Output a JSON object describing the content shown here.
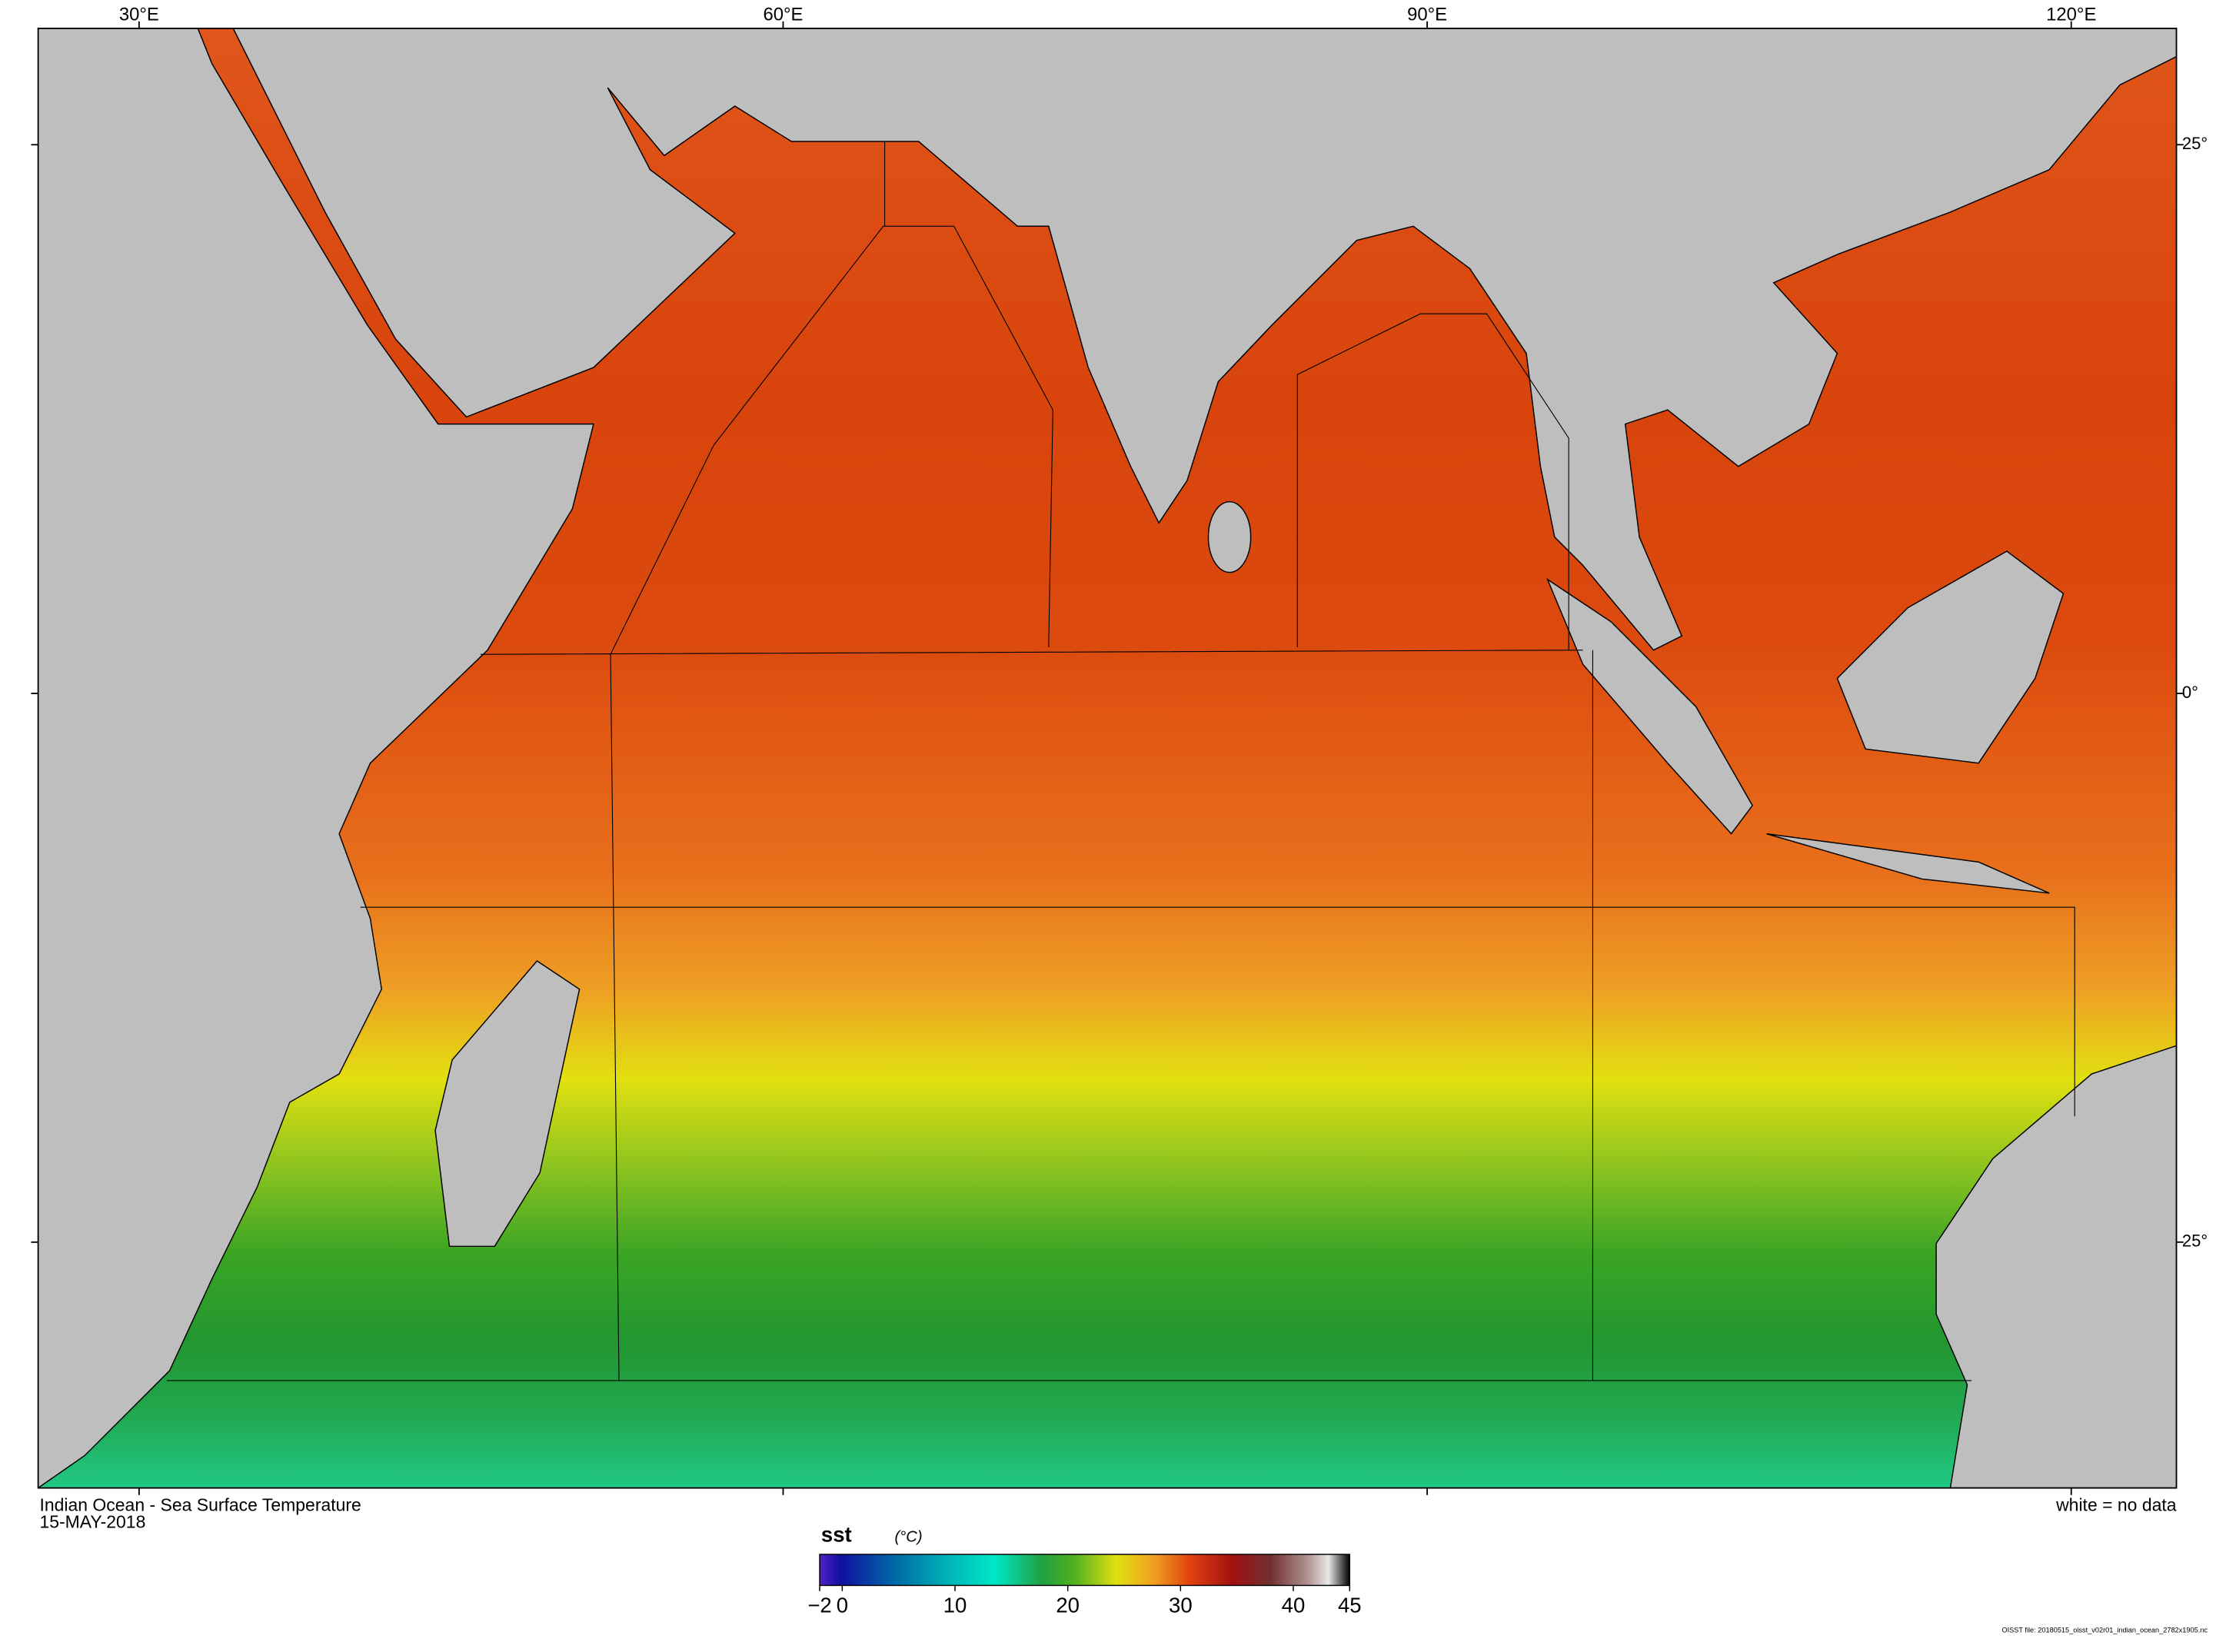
{
  "map": {
    "title": "Indian Ocean - Sea Surface Temperature",
    "date": "15-MAY-2018",
    "note": "white = no data",
    "lon_lim": [
      25.3,
      124.9
    ],
    "lat_lim": [
      -36.2,
      30.3
    ],
    "lon_ticks": [
      {
        "value": 30,
        "label": "30°E"
      },
      {
        "value": 60,
        "label": "60°E"
      },
      {
        "value": 90,
        "label": "90°E"
      },
      {
        "value": 120,
        "label": "120°E"
      }
    ],
    "lat_ticks": [
      {
        "value": 25,
        "label": "25°"
      },
      {
        "value": 0,
        "label": "0°"
      },
      {
        "value": -25,
        "label": "25°"
      }
    ]
  },
  "colorbar": {
    "label": "sst",
    "unit": "(°C)",
    "lim": [
      -2,
      45
    ],
    "ticks": [
      {
        "value": -2,
        "label": "−2"
      },
      0,
      10,
      20,
      30,
      40,
      45
    ]
  },
  "footer": "OISST file: 20180515_oisst_v02r01_indian_ocean_2782x1905.nc"
}
